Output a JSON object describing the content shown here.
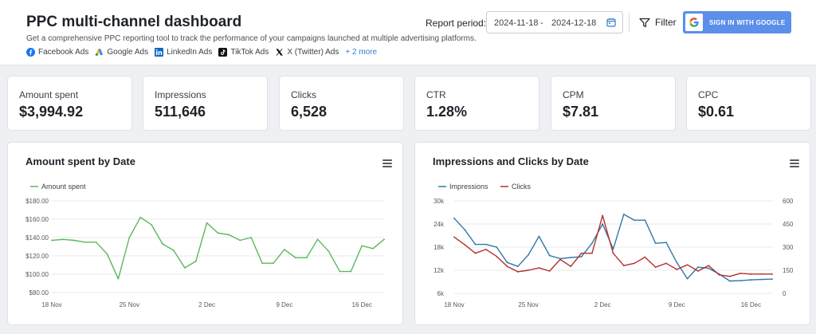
{
  "header": {
    "title": "PPC multi-channel dashboard",
    "subtitle": "Get a comprehensive PPC reporting tool to track the performance of your campaigns launched at multiple advertising platforms.",
    "platforms": [
      {
        "label": "Facebook Ads",
        "icon": "facebook-icon"
      },
      {
        "label": "Google Ads",
        "icon": "google-ads-icon"
      },
      {
        "label": "LinkedIn Ads",
        "icon": "linkedin-icon"
      },
      {
        "label": "TikTok Ads",
        "icon": "tiktok-icon"
      },
      {
        "label": "X (Twitter) Ads",
        "icon": "x-twitter-icon"
      }
    ],
    "more_label": "+ 2 more"
  },
  "controls": {
    "report_period_label": "Report period:",
    "date_start": "2024-11-18",
    "date_sep": "-",
    "date_end": "2024-12-18",
    "filter_label": "Filter",
    "google_button_label": "SIGN IN WITH GOOGLE"
  },
  "kpis": [
    {
      "label": "Amount spent",
      "value": "$3,994.92"
    },
    {
      "label": "Impressions",
      "value": "511,646"
    },
    {
      "label": "Clicks",
      "value": "6,528"
    },
    {
      "label": "CTR",
      "value": "1.28%"
    },
    {
      "label": "CPM",
      "value": "$7.81"
    },
    {
      "label": "CPC",
      "value": "$0.61"
    }
  ],
  "colors": {
    "accent": "#5b8fea",
    "amount_line": "#5cb85c",
    "impressions_line": "#2e78a8",
    "clicks_line": "#b5302a"
  },
  "chart_data": [
    {
      "type": "line",
      "title": "Amount spent by Date",
      "x": [
        "2024-11-18",
        "2024-11-19",
        "2024-11-20",
        "2024-11-21",
        "2024-11-22",
        "2024-11-23",
        "2024-11-24",
        "2024-11-25",
        "2024-11-26",
        "2024-11-27",
        "2024-11-28",
        "2024-11-29",
        "2024-11-30",
        "2024-12-01",
        "2024-12-02",
        "2024-12-03",
        "2024-12-04",
        "2024-12-05",
        "2024-12-06",
        "2024-12-07",
        "2024-12-08",
        "2024-12-09",
        "2024-12-10",
        "2024-12-11",
        "2024-12-12",
        "2024-12-13",
        "2024-12-14",
        "2024-12-15",
        "2024-12-16",
        "2024-12-17",
        "2024-12-18"
      ],
      "x_ticks": [
        "18 Nov",
        "25 Nov",
        "2 Dec",
        "9 Dec",
        "16 Dec"
      ],
      "y_ticks": [
        "$80.00",
        "$100.00",
        "$120.00",
        "$140.00",
        "$160.00",
        "$180.00"
      ],
      "ylim": [
        80,
        180
      ],
      "series": [
        {
          "name": "Amount spent",
          "values": [
            137,
            138,
            137,
            135,
            135,
            122,
            95,
            140,
            162,
            154,
            133,
            126,
            107,
            114,
            156,
            145,
            143,
            137,
            140,
            112,
            112,
            127,
            118,
            118,
            138,
            125,
            103,
            103,
            131,
            128,
            138
          ]
        }
      ],
      "legend": "top-left",
      "grid": true
    },
    {
      "type": "line",
      "title": "Impressions and Clicks by Date",
      "x": [
        "2024-11-18",
        "2024-11-19",
        "2024-11-20",
        "2024-11-21",
        "2024-11-22",
        "2024-11-23",
        "2024-11-24",
        "2024-11-25",
        "2024-11-26",
        "2024-11-27",
        "2024-11-28",
        "2024-11-29",
        "2024-11-30",
        "2024-12-01",
        "2024-12-02",
        "2024-12-03",
        "2024-12-04",
        "2024-12-05",
        "2024-12-06",
        "2024-12-07",
        "2024-12-08",
        "2024-12-09",
        "2024-12-10",
        "2024-12-11",
        "2024-12-12",
        "2024-12-13",
        "2024-12-14",
        "2024-12-15",
        "2024-12-16",
        "2024-12-17",
        "2024-12-18"
      ],
      "x_ticks": [
        "18 Nov",
        "25 Nov",
        "2 Dec",
        "9 Dec",
        "16 Dec"
      ],
      "y_ticks_left": [
        "6k",
        "12k",
        "18k",
        "24k",
        "30k"
      ],
      "y_ticks_right": [
        "0",
        "150",
        "300",
        "450",
        "600"
      ],
      "ylim_left": [
        6000,
        30000
      ],
      "ylim_right": [
        0,
        600
      ],
      "series": [
        {
          "name": "Impressions",
          "axis": "left",
          "values": [
            25500,
            22500,
            18700,
            18700,
            18000,
            14000,
            13000,
            16000,
            20800,
            15800,
            15000,
            15300,
            15500,
            19000,
            24000,
            17500,
            26500,
            25000,
            25000,
            19000,
            19200,
            14000,
            9800,
            12800,
            12500,
            11000,
            9200,
            9300,
            9500,
            9600,
            9700
          ]
        },
        {
          "name": "Clicks",
          "axis": "right",
          "values": [
            365,
            315,
            260,
            285,
            240,
            175,
            140,
            150,
            165,
            145,
            220,
            175,
            260,
            260,
            505,
            260,
            180,
            195,
            235,
            170,
            195,
            155,
            185,
            145,
            180,
            120,
            110,
            130,
            125,
            125,
            125
          ]
        }
      ],
      "legend": "top-left",
      "grid": true
    }
  ]
}
